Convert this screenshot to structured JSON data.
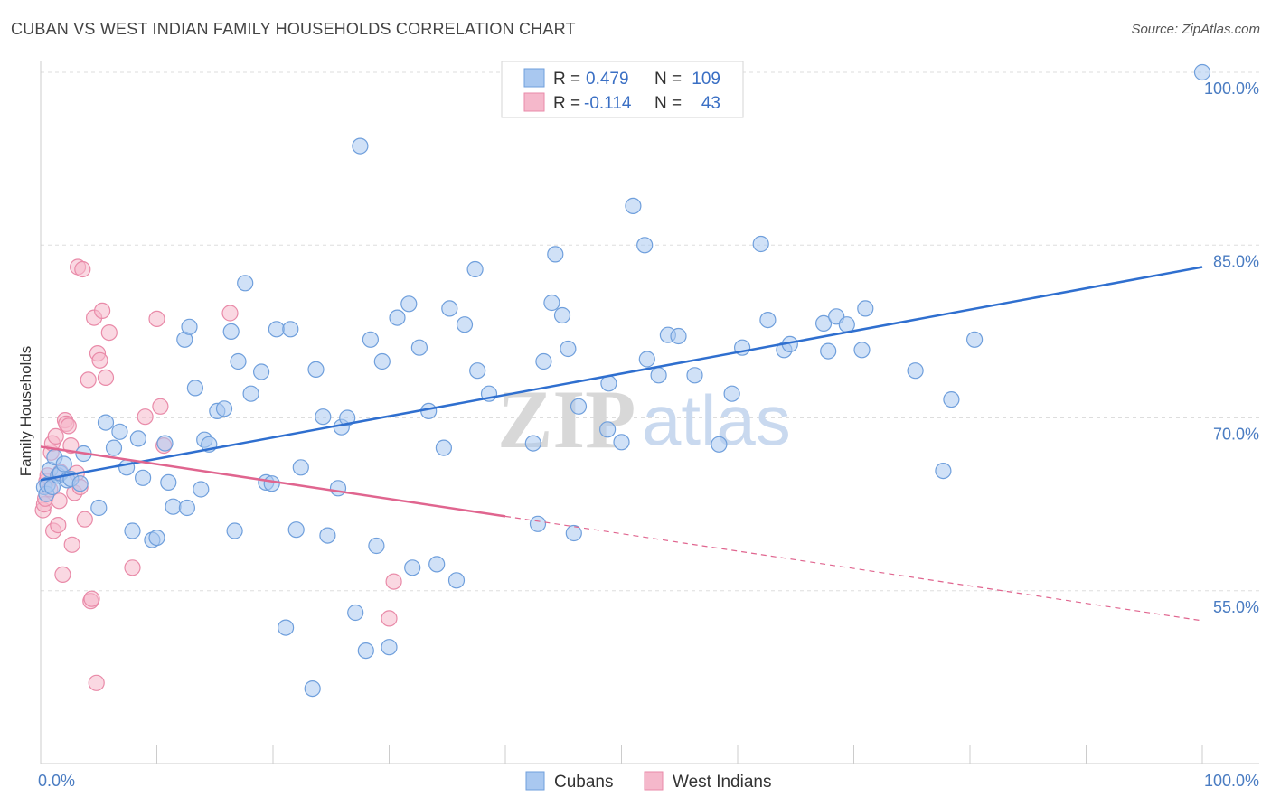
{
  "title": "CUBAN VS WEST INDIAN FAMILY HOUSEHOLDS CORRELATION CHART",
  "source": "Source: ZipAtlas.com",
  "watermark": {
    "zip": "ZIP",
    "atlas": "atlas"
  },
  "colors": {
    "cubans_fill": "#a9c8f0",
    "cubans_stroke": "#6f9fdc",
    "cubans_line": "#2f6fcf",
    "westindians_fill": "#f5b8cb",
    "westindians_stroke": "#e98aa8",
    "westindians_line": "#e0658f",
    "grid": "#dddddd",
    "axis_label": "#4a7cc2"
  },
  "legend": {
    "rows": [
      {
        "r_label": "R =",
        "r_value": "0.479",
        "n_label": "N =",
        "n_value": "109"
      },
      {
        "r_label": "R =",
        "r_value": "-0.114",
        "n_label": "N =",
        "n_value": "43"
      }
    ]
  },
  "chart_data": {
    "type": "scatter",
    "title": "CUBAN VS WEST INDIAN FAMILY HOUSEHOLDS CORRELATION CHART",
    "xlabel": "",
    "ylabel": "Family Households",
    "xlim": [
      0,
      100
    ],
    "ylim": [
      42,
      101.5
    ],
    "x_tick_labels": [
      "0.0%",
      "100.0%"
    ],
    "y_ticks": [
      55,
      70,
      85,
      100
    ],
    "y_tick_labels": [
      "55.0%",
      "70.0%",
      "85.0%",
      "100.0%"
    ],
    "legend_position": "top-center",
    "series": [
      {
        "name": "Cubans",
        "r": 0.479,
        "n": 109,
        "trend": {
          "x": [
            0,
            100
          ],
          "y": [
            64.6,
            83.1
          ],
          "dashed_from": null
        },
        "points": [
          [
            0.3,
            64.0
          ],
          [
            0.5,
            63.4
          ],
          [
            0.6,
            64.2
          ],
          [
            0.8,
            65.5
          ],
          [
            1.0,
            64.0
          ],
          [
            1.2,
            66.6
          ],
          [
            1.5,
            65.0
          ],
          [
            1.7,
            65.2
          ],
          [
            2.0,
            66.0
          ],
          [
            2.3,
            64.6
          ],
          [
            2.6,
            64.7
          ],
          [
            3.4,
            64.3
          ],
          [
            3.7,
            66.9
          ],
          [
            5.0,
            62.2
          ],
          [
            5.6,
            69.6
          ],
          [
            6.3,
            67.4
          ],
          [
            6.8,
            68.8
          ],
          [
            7.4,
            65.7
          ],
          [
            7.9,
            60.2
          ],
          [
            8.4,
            68.2
          ],
          [
            8.8,
            64.8
          ],
          [
            9.6,
            59.4
          ],
          [
            10.0,
            59.6
          ],
          [
            10.7,
            67.8
          ],
          [
            11.0,
            64.4
          ],
          [
            11.4,
            62.3
          ],
          [
            12.4,
            76.8
          ],
          [
            12.6,
            62.2
          ],
          [
            12.8,
            77.9
          ],
          [
            13.3,
            72.6
          ],
          [
            13.8,
            63.8
          ],
          [
            14.1,
            68.1
          ],
          [
            14.5,
            67.7
          ],
          [
            15.2,
            70.6
          ],
          [
            15.8,
            70.8
          ],
          [
            16.4,
            77.5
          ],
          [
            16.7,
            60.2
          ],
          [
            17.0,
            74.9
          ],
          [
            17.6,
            81.7
          ],
          [
            18.1,
            72.1
          ],
          [
            19.0,
            74.0
          ],
          [
            19.4,
            64.4
          ],
          [
            19.9,
            64.3
          ],
          [
            20.3,
            77.7
          ],
          [
            21.1,
            51.8
          ],
          [
            21.5,
            77.7
          ],
          [
            22.0,
            60.3
          ],
          [
            22.4,
            65.7
          ],
          [
            23.4,
            46.5
          ],
          [
            23.7,
            74.2
          ],
          [
            24.3,
            70.1
          ],
          [
            24.7,
            59.8
          ],
          [
            25.6,
            63.9
          ],
          [
            25.9,
            69.2
          ],
          [
            26.4,
            70.0
          ],
          [
            27.1,
            53.1
          ],
          [
            27.5,
            93.6
          ],
          [
            28.0,
            49.8
          ],
          [
            28.4,
            76.8
          ],
          [
            28.9,
            58.9
          ],
          [
            29.4,
            74.9
          ],
          [
            30.0,
            50.1
          ],
          [
            30.7,
            78.7
          ],
          [
            31.7,
            79.9
          ],
          [
            32.0,
            57.0
          ],
          [
            32.6,
            76.1
          ],
          [
            33.4,
            70.6
          ],
          [
            34.1,
            57.3
          ],
          [
            34.7,
            67.4
          ],
          [
            35.2,
            79.5
          ],
          [
            35.8,
            55.9
          ],
          [
            36.5,
            78.1
          ],
          [
            37.4,
            82.9
          ],
          [
            37.6,
            74.1
          ],
          [
            38.6,
            72.1
          ],
          [
            42.4,
            67.8
          ],
          [
            42.8,
            60.8
          ],
          [
            43.3,
            74.9
          ],
          [
            44.0,
            80.0
          ],
          [
            44.3,
            84.2
          ],
          [
            44.9,
            78.9
          ],
          [
            45.4,
            76.0
          ],
          [
            45.9,
            60.0
          ],
          [
            46.3,
            71.0
          ],
          [
            48.8,
            69.0
          ],
          [
            48.9,
            73.0
          ],
          [
            50.0,
            67.9
          ],
          [
            51.0,
            88.4
          ],
          [
            52.0,
            85.0
          ],
          [
            52.2,
            75.1
          ],
          [
            53.2,
            73.7
          ],
          [
            54.0,
            77.2
          ],
          [
            54.9,
            77.1
          ],
          [
            56.3,
            73.7
          ],
          [
            58.4,
            67.7
          ],
          [
            59.5,
            72.1
          ],
          [
            60.4,
            76.1
          ],
          [
            62.0,
            85.1
          ],
          [
            62.6,
            78.5
          ],
          [
            64.0,
            75.9
          ],
          [
            64.5,
            76.4
          ],
          [
            67.4,
            78.2
          ],
          [
            67.8,
            75.8
          ],
          [
            68.5,
            78.8
          ],
          [
            69.4,
            78.1
          ],
          [
            70.7,
            75.9
          ],
          [
            71.0,
            79.5
          ],
          [
            75.3,
            74.1
          ],
          [
            77.7,
            65.4
          ],
          [
            78.4,
            71.6
          ],
          [
            80.4,
            76.8
          ],
          [
            100.0,
            100.0
          ]
        ]
      },
      {
        "name": "West Indians",
        "r": -0.114,
        "n": 43,
        "trend": {
          "x": [
            0,
            100
          ],
          "y": [
            67.5,
            52.4
          ],
          "dashed_from": 40.0
        },
        "points": [
          [
            0.2,
            62.0
          ],
          [
            0.3,
            62.5
          ],
          [
            0.4,
            63.0
          ],
          [
            0.5,
            64.5
          ],
          [
            0.6,
            65.0
          ],
          [
            0.8,
            63.8
          ],
          [
            0.9,
            67.0
          ],
          [
            1.0,
            67.8
          ],
          [
            1.1,
            60.2
          ],
          [
            1.3,
            68.4
          ],
          [
            1.5,
            60.7
          ],
          [
            1.6,
            62.8
          ],
          [
            1.7,
            65.3
          ],
          [
            1.9,
            56.4
          ],
          [
            2.1,
            69.8
          ],
          [
            2.2,
            69.5
          ],
          [
            2.4,
            69.3
          ],
          [
            2.6,
            67.6
          ],
          [
            2.7,
            59.0
          ],
          [
            2.9,
            63.5
          ],
          [
            3.1,
            65.2
          ],
          [
            3.2,
            83.1
          ],
          [
            3.4,
            64.0
          ],
          [
            3.6,
            82.9
          ],
          [
            3.8,
            61.2
          ],
          [
            4.1,
            73.3
          ],
          [
            4.3,
            54.1
          ],
          [
            4.4,
            54.3
          ],
          [
            4.6,
            78.7
          ],
          [
            4.8,
            47.0
          ],
          [
            4.9,
            75.6
          ],
          [
            5.1,
            75.0
          ],
          [
            5.3,
            79.3
          ],
          [
            5.6,
            73.5
          ],
          [
            5.9,
            77.4
          ],
          [
            7.9,
            57.0
          ],
          [
            9.0,
            70.1
          ],
          [
            10.0,
            78.6
          ],
          [
            10.3,
            71.0
          ],
          [
            10.6,
            67.6
          ],
          [
            16.3,
            79.1
          ],
          [
            30.0,
            52.6
          ],
          [
            30.4,
            55.8
          ]
        ]
      }
    ]
  },
  "bottom_legend": [
    {
      "label": "Cubans"
    },
    {
      "label": "West Indians"
    }
  ]
}
